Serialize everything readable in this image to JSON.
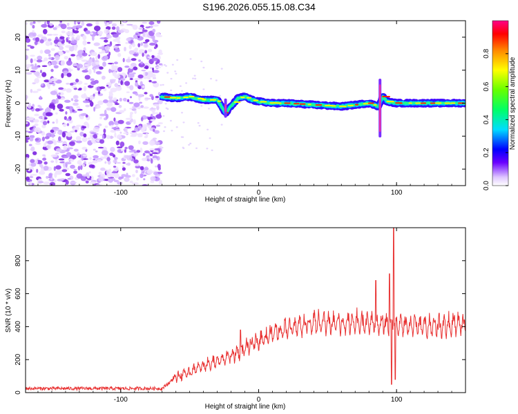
{
  "title": "S196.2026.055.15.08.C34",
  "colors": {
    "signal": "#e8333b",
    "noise": "#8a3ee0",
    "line": "#e83030",
    "axis": "#000000"
  },
  "chart_data": [
    {
      "type": "heatmap",
      "name": "spectrogram",
      "xlabel": "Height of straight line (km)",
      "ylabel": "Frequency (Hz)",
      "xlim": [
        -169,
        150
      ],
      "ylim": [
        -25,
        25
      ],
      "xticks": [
        -100,
        0,
        100
      ],
      "yticks": [
        -20,
        -10,
        0,
        10,
        20
      ],
      "xtick_labels": [
        "-100",
        "0",
        "100"
      ],
      "ytick_labels": [
        "-20",
        "-10",
        "0",
        "10",
        "20"
      ],
      "noise_region_x": [
        -169,
        -71
      ],
      "ridge": {
        "description": "dominant spectral ridge",
        "x": [
          -71,
          -60,
          -50,
          -40,
          -30,
          -24,
          -20,
          -15,
          -10,
          -5,
          0,
          10,
          20,
          40,
          60,
          80,
          87,
          90,
          93,
          100,
          120,
          150
        ],
        "frequency": [
          2,
          1.5,
          2,
          1,
          1,
          -3,
          -1,
          1.5,
          2,
          1,
          0.5,
          0,
          0,
          -0.5,
          -1,
          0,
          -1,
          2,
          0.5,
          0,
          0,
          0
        ]
      },
      "colorbar": {
        "label": "Normalized spectral amplitude",
        "range": [
          0,
          1
        ],
        "ticks": [
          0.0,
          0.2,
          0.4,
          0.6,
          0.8
        ],
        "tick_labels": [
          "0.0",
          "0.2",
          "0.4",
          "0.6",
          "0.8"
        ]
      }
    },
    {
      "type": "line",
      "name": "snr",
      "xlabel": "Height of straight line (km)",
      "ylabel": "SNR (10 * v/v)",
      "xlim": [
        -169,
        150
      ],
      "ylim": [
        0,
        1000
      ],
      "xticks": [
        -100,
        0,
        100
      ],
      "yticks": [
        0,
        200,
        400,
        600,
        800
      ],
      "xtick_labels": [
        "-100",
        "0",
        "100"
      ],
      "ytick_labels": [
        "0",
        "200",
        "400",
        "600",
        "800"
      ],
      "trend": {
        "x": [
          -169,
          -100,
          -70,
          -62,
          -50,
          -40,
          -30,
          -20,
          -10,
          0,
          10,
          20,
          30,
          40,
          60,
          80,
          100,
          120,
          150
        ],
        "y": [
          25,
          25,
          25,
          80,
          120,
          150,
          180,
          210,
          250,
          300,
          340,
          370,
          390,
          400,
          400,
          400,
          390,
          380,
          390
        ]
      },
      "spikes": [
        {
          "x": -13,
          "y": 380
        },
        {
          "x": 85,
          "y": 680
        },
        {
          "x": 95,
          "y": 720
        },
        {
          "x": 98,
          "y": 1000
        },
        {
          "x": 96.5,
          "y": 50
        },
        {
          "x": 99,
          "y": 80
        }
      ]
    }
  ]
}
